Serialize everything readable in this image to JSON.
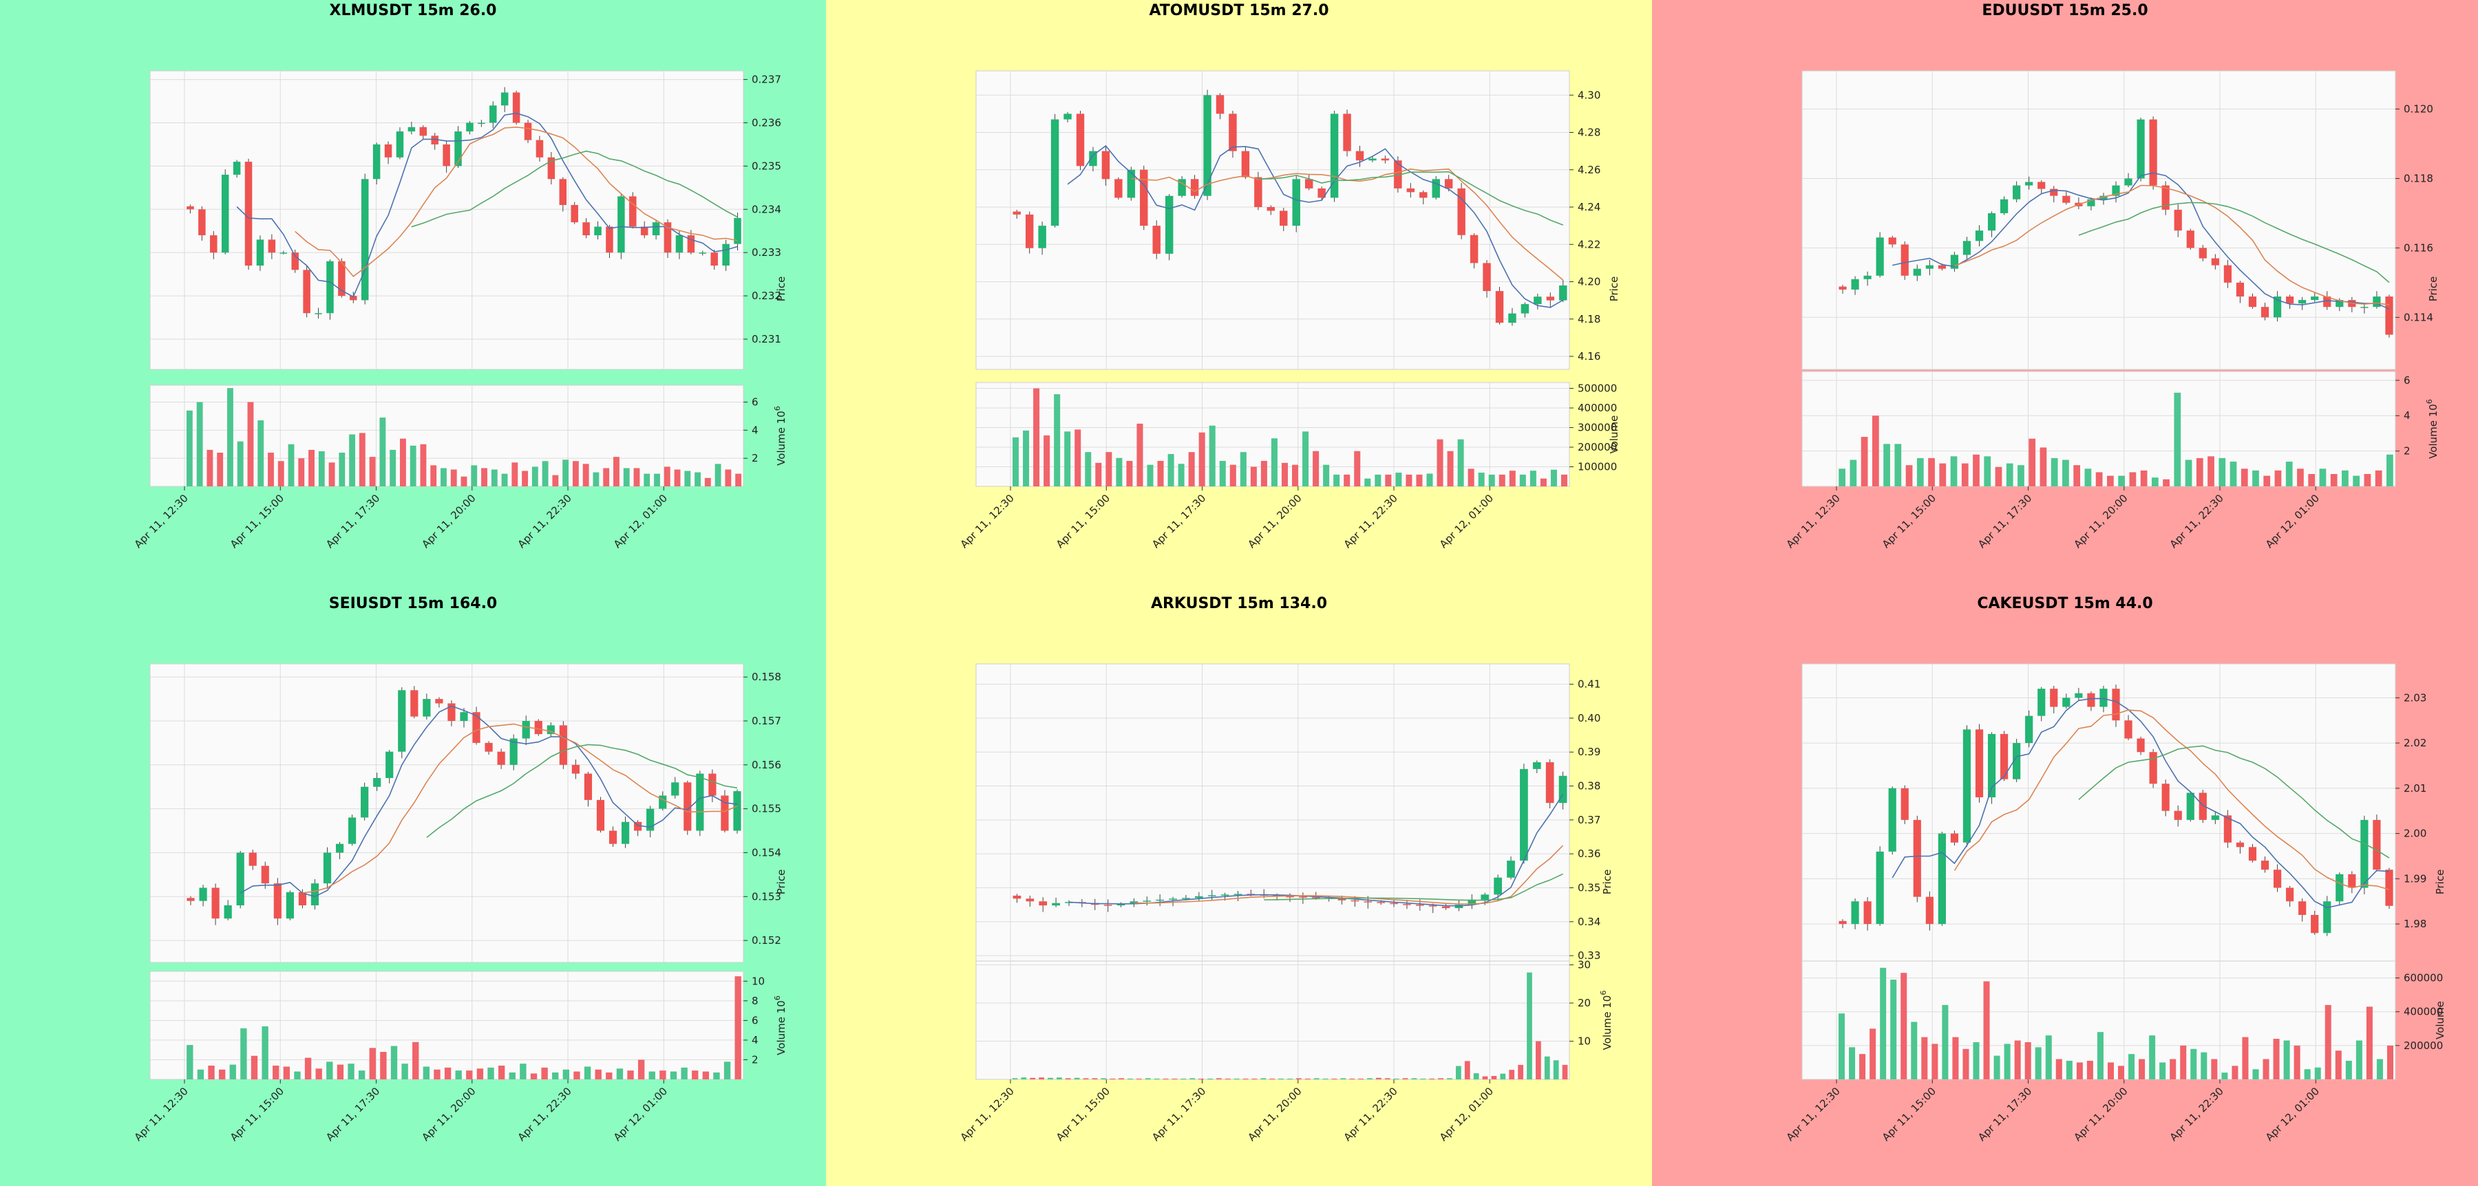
{
  "colors": {
    "up": "#26a69a",
    "up_fill": "#22b573",
    "down": "#ef5350",
    "ma1": "#4c72b0",
    "ma2": "#dd8452",
    "ma3": "#55a868"
  },
  "chart_data": [
    {
      "type": "candlestick",
      "title": "XLMUSDT 15m 26.0",
      "background": "#8dfcc0",
      "ylabel": "Price",
      "vlabel": "Volume",
      "vexp": "6",
      "price_ticks": [
        0.231,
        0.232,
        0.233,
        0.234,
        0.235,
        0.236,
        0.237
      ],
      "price_tick_labels": [
        "0.231",
        "0.232",
        "0.233",
        "0.234",
        "0.235",
        "0.236",
        "0.237"
      ],
      "ylim": [
        0.2303,
        0.2372
      ],
      "vol_ticks": [
        2,
        4,
        6
      ],
      "vol_tick_labels": [
        "2",
        "4",
        "6"
      ],
      "vlim": [
        0,
        7.2
      ],
      "xticks": [
        "Apr 11, 12:30",
        "Apr 11, 15:00",
        "Apr 11, 17:30",
        "Apr 11, 20:00",
        "Apr 11, 22:30",
        "Apr 12, 01:00"
      ],
      "closes": [
        0.234,
        0.2334,
        0.233,
        0.2348,
        0.2351,
        0.2327,
        0.2333,
        0.233,
        0.233,
        0.2326,
        0.2316,
        0.2316,
        0.2328,
        0.232,
        0.2319,
        0.2347,
        0.2355,
        0.2352,
        0.2358,
        0.2359,
        0.2357,
        0.2355,
        0.235,
        0.2358,
        0.236,
        0.236,
        0.2364,
        0.2367,
        0.236,
        0.2356,
        0.2352,
        0.2347,
        0.2341,
        0.2337,
        0.2334,
        0.2336,
        0.233,
        0.2343,
        0.2336,
        0.2334,
        0.2337,
        0.233,
        0.2334,
        0.233,
        0.233,
        0.2327,
        0.2332,
        0.2338
      ],
      "volumes": [
        5.4,
        6.0,
        2.6,
        2.4,
        7.0,
        3.2,
        6.0,
        4.7,
        2.4,
        1.8,
        3.0,
        2.0,
        2.6,
        2.5,
        1.7,
        2.4,
        3.7,
        3.8,
        2.1,
        4.9,
        2.6,
        3.4,
        2.9,
        3.0,
        1.5,
        1.3,
        1.2,
        0.7,
        1.5,
        1.3,
        1.2,
        0.9,
        1.7,
        1.1,
        1.4,
        1.8,
        0.8,
        1.9,
        1.8,
        1.6,
        1.0,
        1.3,
        2.1,
        1.3,
        1.3,
        0.9,
        0.9,
        1.4,
        1.2,
        1.1,
        1.0,
        0.6,
        1.6,
        1.2,
        0.9
      ]
    },
    {
      "type": "candlestick",
      "title": "ATOMUSDT 15m 27.0",
      "background": "#ffffa3",
      "ylabel": "Price",
      "vlabel": "Volume",
      "vexp": "",
      "price_ticks": [
        4.16,
        4.18,
        4.2,
        4.22,
        4.24,
        4.26,
        4.28,
        4.3
      ],
      "price_tick_labels": [
        "4.16",
        "4.18",
        "4.20",
        "4.22",
        "4.24",
        "4.26",
        "4.28",
        "4.30"
      ],
      "ylim": [
        4.153,
        4.313
      ],
      "vol_ticks": [
        100000,
        200000,
        300000,
        400000,
        500000
      ],
      "vol_tick_labels": [
        "100000",
        "200000",
        "300000",
        "400000",
        "500000"
      ],
      "vlim": [
        0,
        530000
      ],
      "xticks": [
        "Apr 11, 12:30",
        "Apr 11, 15:00",
        "Apr 11, 17:30",
        "Apr 11, 20:00",
        "Apr 11, 22:30",
        "Apr 12, 01:00"
      ],
      "closes": [
        4.236,
        4.218,
        4.23,
        4.287,
        4.29,
        4.262,
        4.27,
        4.255,
        4.245,
        4.26,
        4.23,
        4.215,
        4.246,
        4.255,
        4.246,
        4.3,
        4.29,
        4.27,
        4.256,
        4.24,
        4.238,
        4.23,
        4.255,
        4.25,
        4.245,
        4.29,
        4.27,
        4.265,
        4.266,
        4.265,
        4.25,
        4.248,
        4.245,
        4.255,
        4.25,
        4.225,
        4.21,
        4.195,
        4.178,
        4.183,
        4.188,
        4.192,
        4.19,
        4.198
      ],
      "volumes": [
        250000,
        285000,
        500000,
        260000,
        470000,
        280000,
        290000,
        175000,
        120000,
        175000,
        145000,
        130000,
        320000,
        110000,
        130000,
        165000,
        115000,
        175000,
        275000,
        310000,
        130000,
        110000,
        175000,
        100000,
        130000,
        245000,
        120000,
        110000,
        280000,
        180000,
        110000,
        60000,
        60000,
        180000,
        40000,
        60000,
        60000,
        70000,
        60000,
        60000,
        65000,
        240000,
        180000,
        240000,
        90000,
        70000,
        60000,
        60000,
        80000,
        60000,
        80000,
        40000,
        85000,
        60000
      ]
    },
    {
      "type": "candlestick",
      "title": "EDUUSDT 15m 25.0",
      "background": "#ffa1a0",
      "ylabel": "Price",
      "vlabel": "Volume",
      "vexp": "6",
      "price_ticks": [
        0.114,
        0.116,
        0.118,
        0.12
      ],
      "price_tick_labels": [
        "0.114",
        "0.116",
        "0.118",
        "0.120"
      ],
      "ylim": [
        0.1125,
        0.1211
      ],
      "vol_ticks": [
        2,
        4,
        6
      ],
      "vol_tick_labels": [
        "2",
        "4",
        "6"
      ],
      "vlim": [
        0,
        6.5
      ],
      "xticks": [
        "Apr 11, 12:30",
        "Apr 11, 15:00",
        "Apr 11, 17:30",
        "Apr 11, 20:00",
        "Apr 11, 22:30",
        "Apr 12, 01:00"
      ],
      "closes": [
        0.1148,
        0.1151,
        0.1152,
        0.1163,
        0.1161,
        0.1152,
        0.1154,
        0.1155,
        0.1154,
        0.1158,
        0.1162,
        0.1165,
        0.117,
        0.1174,
        0.1178,
        0.1179,
        0.1177,
        0.1175,
        0.1173,
        0.1172,
        0.1174,
        0.1175,
        0.1178,
        0.118,
        0.1197,
        0.1178,
        0.1171,
        0.1165,
        0.116,
        0.1157,
        0.1155,
        0.115,
        0.1146,
        0.1143,
        0.114,
        0.1146,
        0.1144,
        0.1145,
        0.1146,
        0.1143,
        0.1145,
        0.1143,
        0.1143,
        0.1146,
        0.1135
      ],
      "volumes": [
        1.0,
        1.5,
        2.8,
        4.0,
        2.4,
        2.4,
        1.2,
        1.6,
        1.6,
        1.3,
        1.7,
        1.3,
        1.8,
        1.7,
        1.1,
        1.3,
        1.2,
        2.7,
        2.2,
        1.6,
        1.5,
        1.2,
        1.0,
        0.8,
        0.6,
        0.6,
        0.8,
        0.9,
        0.5,
        0.4,
        5.3,
        1.5,
        1.6,
        1.7,
        1.6,
        1.4,
        1.0,
        0.9,
        0.6,
        0.9,
        1.4,
        1.0,
        0.7,
        1.0,
        0.7,
        0.9,
        0.6,
        0.7,
        0.9,
        1.8
      ]
    },
    {
      "type": "candlestick",
      "title": "SEIUSDT 15m 164.0",
      "background": "#8dfcc0",
      "ylabel": "Price",
      "vlabel": "Volume",
      "vexp": "6",
      "price_ticks": [
        0.152,
        0.153,
        0.154,
        0.155,
        0.156,
        0.157,
        0.158
      ],
      "price_tick_labels": [
        "0.152",
        "0.153",
        "0.154",
        "0.155",
        "0.156",
        "0.157",
        "0.158"
      ],
      "ylim": [
        0.1515,
        0.1583
      ],
      "vol_ticks": [
        2,
        4,
        6,
        8,
        10
      ],
      "vol_tick_labels": [
        "2",
        "4",
        "6",
        "8",
        "10"
      ],
      "vlim": [
        0,
        11
      ],
      "xticks": [
        "Apr 11, 12:30",
        "Apr 11, 15:00",
        "Apr 11, 17:30",
        "Apr 11, 20:00",
        "Apr 11, 22:30",
        "Apr 12, 01:00"
      ],
      "closes": [
        0.1529,
        0.1532,
        0.1525,
        0.1528,
        0.154,
        0.1537,
        0.1533,
        0.1525,
        0.1531,
        0.1528,
        0.1533,
        0.154,
        0.1542,
        0.1548,
        0.1555,
        0.1557,
        0.1563,
        0.1577,
        0.1571,
        0.1575,
        0.1574,
        0.157,
        0.1572,
        0.1565,
        0.1563,
        0.156,
        0.1566,
        0.157,
        0.1567,
        0.1569,
        0.156,
        0.1558,
        0.1552,
        0.1545,
        0.1542,
        0.1547,
        0.1545,
        0.155,
        0.1553,
        0.1556,
        0.1545,
        0.1558,
        0.1553,
        0.1545,
        0.1554
      ],
      "volumes": [
        3.5,
        1.0,
        1.4,
        1.0,
        1.5,
        5.2,
        2.4,
        5.4,
        1.4,
        1.3,
        0.8,
        2.2,
        1.1,
        1.8,
        1.5,
        1.6,
        0.9,
        3.2,
        2.8,
        3.4,
        1.6,
        3.8,
        1.3,
        1.0,
        1.2,
        0.9,
        0.9,
        1.1,
        1.2,
        1.4,
        0.7,
        1.6,
        0.6,
        1.2,
        0.7,
        1.0,
        0.8,
        1.3,
        1.0,
        0.7,
        1.1,
        0.9,
        2.0,
        0.8,
        0.9,
        0.8,
        1.2,
        0.9,
        0.8,
        0.7,
        1.8,
        10.5
      ]
    },
    {
      "type": "candlestick",
      "title": "ARKUSDT 15m 134.0",
      "background": "#ffffa3",
      "ylabel": "Price",
      "vlabel": "Volume",
      "vexp": "6",
      "price_ticks": [
        0.33,
        0.34,
        0.35,
        0.36,
        0.37,
        0.38,
        0.39,
        0.4,
        0.41
      ],
      "price_tick_labels": [
        "0.33",
        "0.34",
        "0.35",
        "0.36",
        "0.37",
        "0.38",
        "0.39",
        "0.40",
        "0.41"
      ],
      "ylim": [
        0.328,
        0.416
      ],
      "vol_ticks": [
        10,
        20,
        30
      ],
      "vol_tick_labels": [
        "10",
        "20",
        "30"
      ],
      "vlim": [
        0,
        31
      ],
      "xticks": [
        "Apr 11, 12:30",
        "Apr 11, 15:00",
        "Apr 11, 17:30",
        "Apr 11, 20:00",
        "Apr 11, 22:30",
        "Apr 12, 01:00"
      ],
      "closes": [
        0.3468,
        0.346,
        0.3448,
        0.3455,
        0.3458,
        0.3455,
        0.345,
        0.3448,
        0.3452,
        0.346,
        0.3462,
        0.3465,
        0.3468,
        0.347,
        0.3475,
        0.3478,
        0.348,
        0.3482,
        0.348,
        0.3478,
        0.3475,
        0.3474,
        0.3472,
        0.347,
        0.3468,
        0.3463,
        0.346,
        0.3458,
        0.3455,
        0.3452,
        0.345,
        0.3448,
        0.3445,
        0.344,
        0.345,
        0.3465,
        0.348,
        0.353,
        0.358,
        0.385,
        0.387,
        0.375,
        0.383
      ],
      "volumes": [
        0.3,
        0.5,
        0.4,
        0.5,
        0.4,
        0.5,
        0.3,
        0.4,
        0.3,
        0.3,
        0.3,
        0.2,
        0.3,
        0.2,
        0.2,
        0.3,
        0.2,
        0.2,
        0.2,
        0.2,
        0.3,
        0.2,
        0.2,
        0.3,
        0.2,
        0.2,
        0.2,
        0.2,
        0.3,
        0.2,
        0.2,
        0.2,
        0.3,
        0.2,
        0.3,
        0.2,
        0.2,
        0.3,
        0.2,
        0.2,
        0.3,
        0.4,
        0.3,
        0.2,
        0.3,
        0.3,
        0.2,
        0.2,
        0.3,
        0.3,
        3.5,
        4.8,
        1.6,
        0.8,
        0.9,
        1.5,
        2.5,
        3.8,
        28.0,
        10.0,
        6.0,
        5.0,
        3.8
      ]
    },
    {
      "type": "candlestick",
      "title": "CAKEUSDT 15m 44.0",
      "background": "#ffa1a0",
      "ylabel": "Price",
      "vlabel": "Volume",
      "vexp": "",
      "price_ticks": [
        1.98,
        1.99,
        2.0,
        2.01,
        2.02,
        2.03
      ],
      "price_tick_labels": [
        "1.98",
        "1.99",
        "2.00",
        "2.01",
        "2.02",
        "2.03"
      ],
      "ylim": [
        1.9715,
        2.0375
      ],
      "vol_ticks": [
        200000,
        400000,
        600000
      ],
      "vol_tick_labels": [
        "200000",
        "400000",
        "600000"
      ],
      "vlim": [
        0,
        700000
      ],
      "xticks": [
        "Apr 11, 12:30",
        "Apr 11, 15:00",
        "Apr 11, 17:30",
        "Apr 11, 20:00",
        "Apr 11, 22:30",
        "Apr 12, 01:00"
      ],
      "closes": [
        1.98,
        1.985,
        1.98,
        1.996,
        2.01,
        2.003,
        1.986,
        1.98,
        2.0,
        1.998,
        2.023,
        2.008,
        2.022,
        2.012,
        2.02,
        2.026,
        2.032,
        2.028,
        2.03,
        2.031,
        2.028,
        2.032,
        2.025,
        2.021,
        2.018,
        2.011,
        2.005,
        2.003,
        2.009,
        2.003,
        2.004,
        1.998,
        1.997,
        1.994,
        1.992,
        1.988,
        1.985,
        1.982,
        1.978,
        1.985,
        1.991,
        1.988,
        2.003,
        1.992,
        1.984
      ],
      "volumes": [
        390000,
        190000,
        150000,
        300000,
        660000,
        590000,
        630000,
        340000,
        250000,
        210000,
        440000,
        250000,
        180000,
        220000,
        580000,
        140000,
        210000,
        230000,
        220000,
        190000,
        260000,
        120000,
        110000,
        100000,
        110000,
        280000,
        100000,
        80000,
        150000,
        120000,
        260000,
        100000,
        120000,
        200000,
        180000,
        160000,
        120000,
        40000,
        80000,
        250000,
        60000,
        120000,
        240000,
        230000,
        200000,
        60000,
        70000,
        440000,
        170000,
        110000,
        230000,
        430000,
        120000,
        200000
      ]
    }
  ]
}
